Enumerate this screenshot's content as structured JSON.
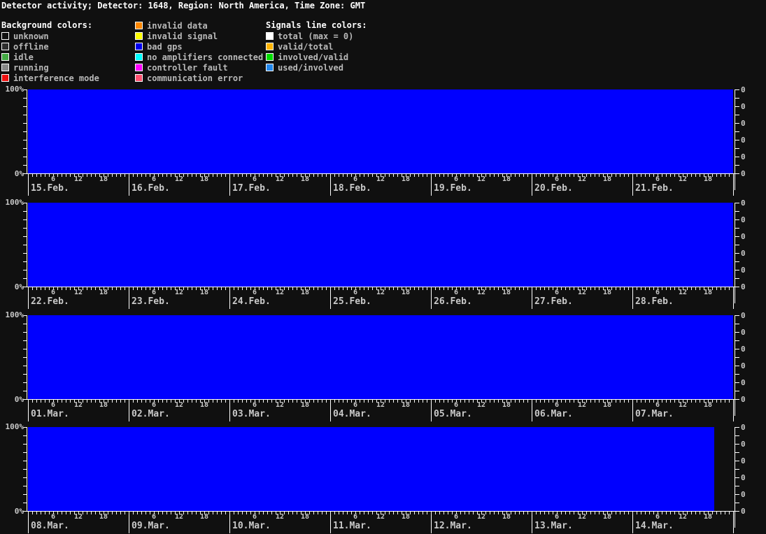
{
  "title": "Detector activity; Detector: 1648, Region: North America, Time Zone: GMT",
  "legend": {
    "background": {
      "header": "Background colors:",
      "items": [
        {
          "label": "unknown",
          "color": "#101010"
        },
        {
          "label": "offline",
          "color": "#2e2e2e"
        },
        {
          "label": "idle",
          "color": "#44aa44"
        },
        {
          "label": "running",
          "color": "#888888"
        },
        {
          "label": "interference mode",
          "color": "#ee1111"
        }
      ]
    },
    "background2": {
      "items": [
        {
          "label": "invalid data",
          "color": "#ff8800"
        },
        {
          "label": "invalid signal",
          "color": "#ffff00"
        },
        {
          "label": "bad gps",
          "color": "#0000ee"
        },
        {
          "label": "no amplifiers connected",
          "color": "#00ffff"
        },
        {
          "label": "controller fault",
          "color": "#ff00ff"
        },
        {
          "label": "communication error",
          "color": "#ff5070"
        }
      ]
    },
    "signals": {
      "header": "Signals line colors:",
      "items": [
        {
          "label": "total (max = 0)",
          "color": "#ffffff"
        },
        {
          "label": "valid/total",
          "color": "#ffb400"
        },
        {
          "label": "involved/valid",
          "color": "#00dd00"
        },
        {
          "label": "used/involved",
          "color": "#2288ee"
        }
      ]
    }
  },
  "chart_data": {
    "type": "area",
    "series_label": "background status: bad gps",
    "fill_color": "#0000ff",
    "ylim": [
      0,
      100
    ],
    "y_top_label": "100%",
    "y_bottom_label": "0%",
    "right_axis_label": "0",
    "right_axis_label_count": 6,
    "hour_labels": [
      "6",
      "12",
      "18"
    ],
    "hours_per_day": 24,
    "note": "Entire shown period is 'bad gps' background at 100%; signal lines flat (total max = 0). Data on last day 14.Mar. ends around 19:30 GMT.",
    "rows": [
      {
        "days": [
          {
            "date": "15.Feb.",
            "value_pct": 100,
            "coverage": 1
          },
          {
            "date": "16.Feb.",
            "value_pct": 100,
            "coverage": 1
          },
          {
            "date": "17.Feb.",
            "value_pct": 100,
            "coverage": 1
          },
          {
            "date": "18.Feb.",
            "value_pct": 100,
            "coverage": 1
          },
          {
            "date": "19.Feb.",
            "value_pct": 100,
            "coverage": 1
          },
          {
            "date": "20.Feb.",
            "value_pct": 100,
            "coverage": 1
          },
          {
            "date": "21.Feb.",
            "value_pct": 100,
            "coverage": 1
          }
        ]
      },
      {
        "days": [
          {
            "date": "22.Feb.",
            "value_pct": 100,
            "coverage": 1
          },
          {
            "date": "23.Feb.",
            "value_pct": 100,
            "coverage": 1
          },
          {
            "date": "24.Feb.",
            "value_pct": 100,
            "coverage": 1
          },
          {
            "date": "25.Feb.",
            "value_pct": 100,
            "coverage": 1
          },
          {
            "date": "26.Feb.",
            "value_pct": 100,
            "coverage": 1
          },
          {
            "date": "27.Feb.",
            "value_pct": 100,
            "coverage": 1
          },
          {
            "date": "28.Feb.",
            "value_pct": 100,
            "coverage": 1
          }
        ]
      },
      {
        "days": [
          {
            "date": "01.Mar.",
            "value_pct": 100,
            "coverage": 1
          },
          {
            "date": "02.Mar.",
            "value_pct": 100,
            "coverage": 1
          },
          {
            "date": "03.Mar.",
            "value_pct": 100,
            "coverage": 1
          },
          {
            "date": "04.Mar.",
            "value_pct": 100,
            "coverage": 1
          },
          {
            "date": "05.Mar.",
            "value_pct": 100,
            "coverage": 1
          },
          {
            "date": "06.Mar.",
            "value_pct": 100,
            "coverage": 1
          },
          {
            "date": "07.Mar.",
            "value_pct": 100,
            "coverage": 1
          }
        ]
      },
      {
        "days": [
          {
            "date": "08.Mar.",
            "value_pct": 100,
            "coverage": 1
          },
          {
            "date": "09.Mar.",
            "value_pct": 100,
            "coverage": 1
          },
          {
            "date": "10.Mar.",
            "value_pct": 100,
            "coverage": 1
          },
          {
            "date": "11.Mar.",
            "value_pct": 100,
            "coverage": 1
          },
          {
            "date": "12.Mar.",
            "value_pct": 100,
            "coverage": 1
          },
          {
            "date": "13.Mar.",
            "value_pct": 100,
            "coverage": 1
          },
          {
            "date": "14.Mar.",
            "value_pct": 100,
            "coverage": 0.81
          }
        ]
      }
    ]
  }
}
